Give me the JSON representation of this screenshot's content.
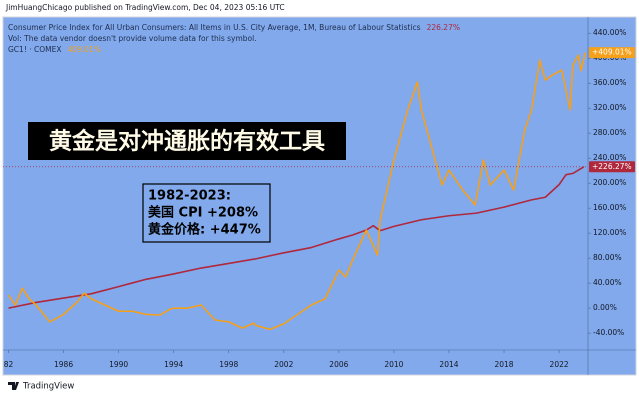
{
  "header": "JimHuangChicago published on TradingView.com, Dec 04, 2023 05:16 UTC",
  "footer": "TradingView",
  "chart_data": {
    "type": "line",
    "title": "黄金是对冲通胀的有效工具",
    "annotations": [
      "1982-2023:",
      "美国 CPI +208%",
      "黄金价格: +447%"
    ],
    "legend_lines": [
      "Consumer Price Index for All Urban Consumers: All Items in U.S. City Average, 1M, Bureau of Labour Statistics",
      "Vol: The data vendor doesn't provide volume data for this symbol.",
      "GC1! · COMEX"
    ],
    "xlim": [
      1981.6,
      2024.1
    ],
    "ylim": [
      -67,
      466
    ],
    "xticks": [
      {
        "value": 1982,
        "label": "82"
      },
      1986,
      1990,
      1994,
      1998,
      2002,
      2006,
      2010,
      2014,
      2018,
      2022
    ],
    "yticks": [
      {
        "value": 440,
        "label": "440.00%"
      },
      {
        "value": 400,
        "label": "400.00%"
      },
      {
        "value": 360,
        "label": "360.00%"
      },
      {
        "value": 320,
        "label": "320.00%"
      },
      {
        "value": 280,
        "label": "280.00%"
      },
      {
        "value": 240,
        "label": "240.00%"
      },
      {
        "value": 200,
        "label": "200.00%"
      },
      {
        "value": 160,
        "label": "160.00%"
      },
      {
        "value": 120,
        "label": "120.00%"
      },
      {
        "value": 80,
        "label": "80.00%"
      },
      {
        "value": 40,
        "label": "40.00%"
      },
      {
        "value": 0,
        "label": "0.00%"
      },
      {
        "value": -40,
        "label": "-40.00%"
      }
    ],
    "series": [
      {
        "name": "Consumer Price Index for All Urban Consumers: All Items in U.S. City Average, 1M, Bureau of Labour Statistics",
        "legend_value": "226.27%",
        "last_label": "+226.27%",
        "color": "#b0283c",
        "x": [
          1982,
          1984,
          1986,
          1988,
          1990,
          1992,
          1994,
          1996,
          1998,
          2000,
          2002,
          2004,
          2006,
          2007,
          2008,
          2008.5,
          2009,
          2010,
          2012,
          2014,
          2016,
          2018,
          2020,
          2021,
          2022,
          2022.5,
          2023,
          2023.8
        ],
        "values": [
          0,
          9.1,
          16.1,
          22.9,
          34.5,
          46.2,
          54.7,
          64.2,
          71.6,
          79.0,
          88.6,
          97.0,
          110.8,
          117,
          125,
          132,
          124,
          130.9,
          141.5,
          147.9,
          152.1,
          161.7,
          173.3,
          177.5,
          197.7,
          213.6,
          215.7,
          226.27
        ]
      },
      {
        "name": "GC1! · COMEX",
        "legend_value": "409.01%",
        "last_label": "+409.01%",
        "color": "#f6a01a",
        "x": [
          1982,
          1982.5,
          1983,
          1983.5,
          1984,
          1985,
          1986,
          1987,
          1987.5,
          1988,
          1989,
          1990,
          1991,
          1992,
          1993,
          1993.7,
          1994,
          1995,
          1996,
          1997,
          1998,
          1999,
          1999.8,
          2000,
          2001,
          2002,
          2003,
          2004,
          2005,
          2006,
          2006.5,
          2007,
          2008,
          2008.8,
          2009,
          2010,
          2011,
          2011.7,
          2012,
          2013,
          2013.5,
          2014,
          2015,
          2015.9,
          2016.5,
          2017,
          2018,
          2018.7,
          2019.5,
          2020,
          2020.6,
          2021,
          2021.5,
          2022.2,
          2022.8,
          2023,
          2023.4,
          2023.6,
          2023.9
        ],
        "values": [
          21,
          5,
          32,
          15,
          5,
          -22,
          -10,
          10,
          24,
          15,
          5,
          -5,
          -5,
          -10,
          -11,
          -2,
          0,
          0,
          5,
          -19,
          -22,
          -32,
          -24,
          -28,
          -34,
          -25,
          -10,
          5,
          15,
          61,
          50,
          77,
          125,
          85,
          141,
          237,
          317,
          362,
          317,
          237,
          197,
          221,
          189,
          165,
          237,
          197,
          221,
          189,
          285,
          317,
          397,
          365,
          373,
          381,
          317,
          389,
          405,
          380,
          409.01
        ]
      }
    ]
  }
}
